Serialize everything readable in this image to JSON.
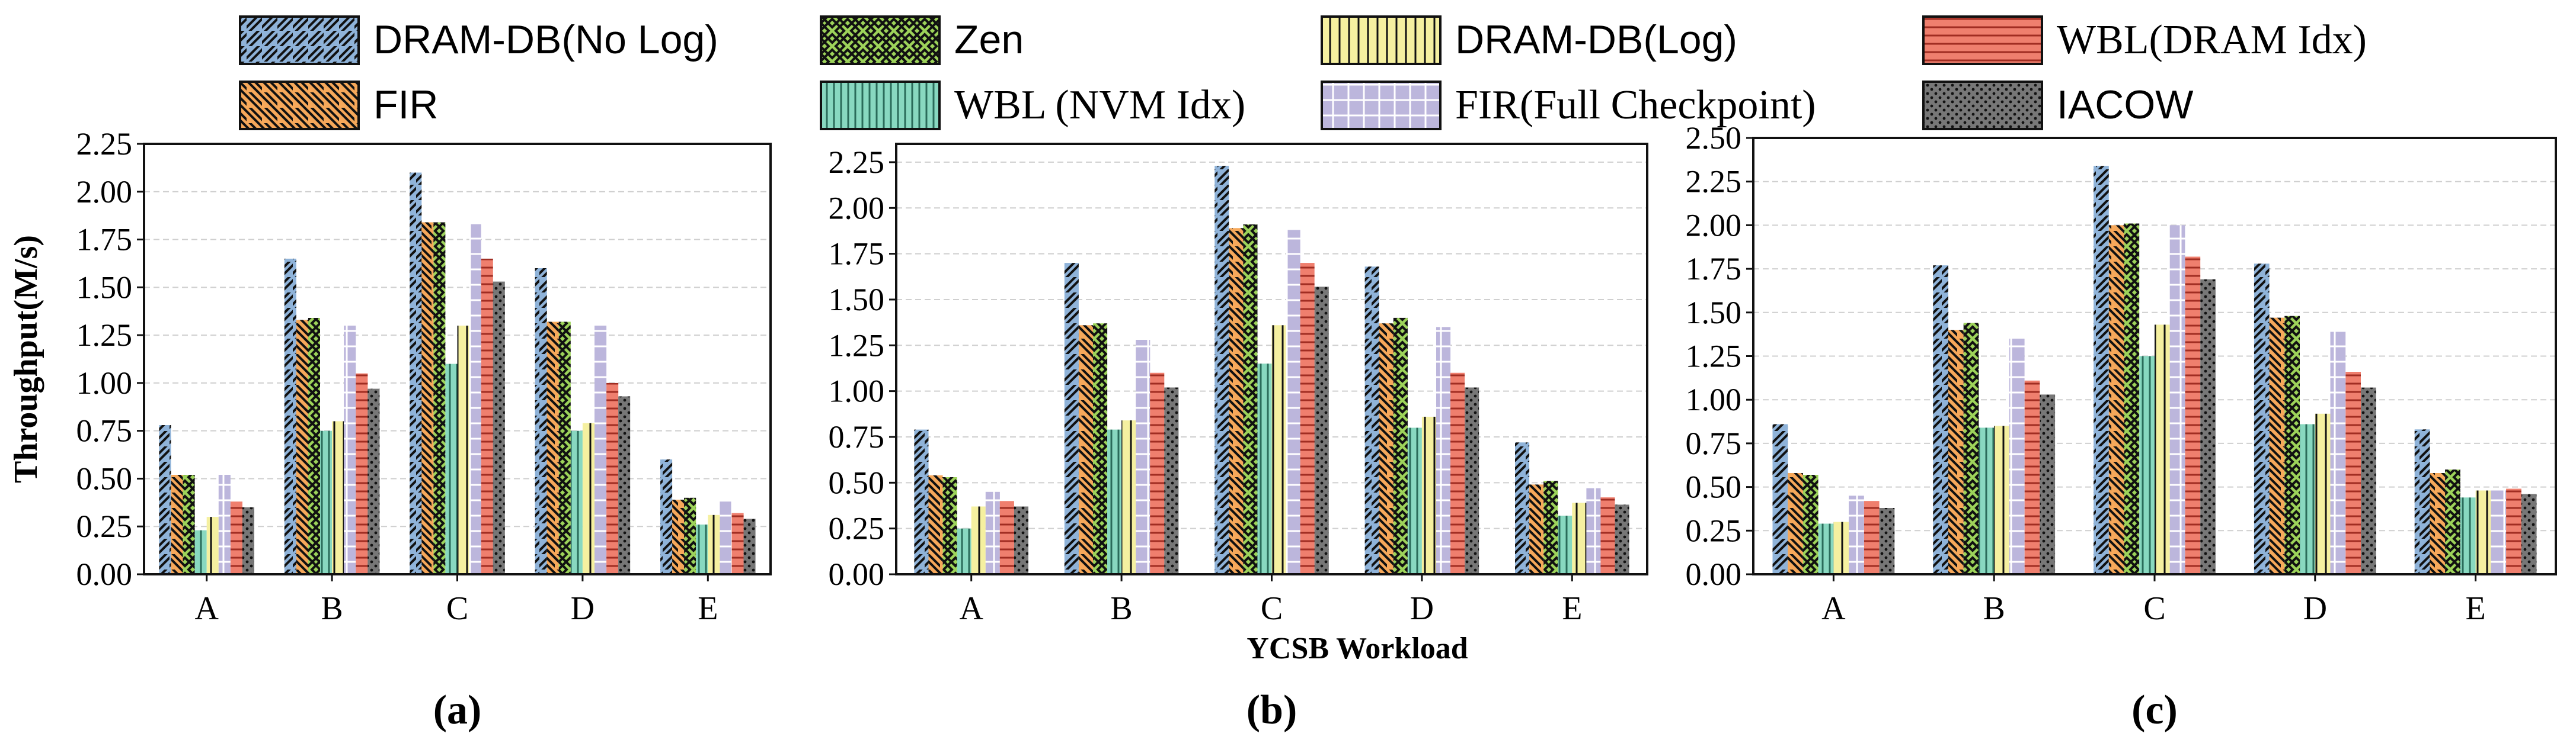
{
  "legend": [
    {
      "name": "DRAM-DB(No Log)",
      "color": "#8fb3d9",
      "pattern": "diag-right"
    },
    {
      "name": "Zen",
      "color": "#9dd35a",
      "pattern": "crosshatch"
    },
    {
      "name": "DRAM-DB(Log)",
      "color": "#f5f0a0",
      "pattern": "vertical"
    },
    {
      "name": "WBL(DRAM Idx)",
      "color": "#ef7f6e",
      "pattern": "horizontal"
    },
    {
      "name": "FIR",
      "color": "#f6a85a",
      "pattern": "diag-left"
    },
    {
      "name": "WBL (NVM Idx)",
      "color": "#88d8c0",
      "pattern": "vertical-dense"
    },
    {
      "name": "FIR(Full Checkpoint)",
      "color": "#bcb6dc",
      "pattern": "grid"
    },
    {
      "name": "IACOW",
      "color": "#777777",
      "pattern": "dots"
    }
  ],
  "shared_xlabel": "YCSB Workload",
  "chart_data": [
    {
      "type": "bar",
      "panel_label": "(a)",
      "title": "",
      "xlabel": "",
      "ylabel": "Throughput(M/s)",
      "ylim": [
        0,
        2.25
      ],
      "yticks": [
        "0.00",
        "0.25",
        "0.50",
        "0.75",
        "1.00",
        "1.25",
        "1.50",
        "1.75",
        "2.00",
        "2.25"
      ],
      "grid": true,
      "categories": [
        "A",
        "B",
        "C",
        "D",
        "E"
      ],
      "series": [
        {
          "name": "DRAM-DB(No Log)",
          "values": [
            0.78,
            1.65,
            2.1,
            1.6,
            0.6
          ]
        },
        {
          "name": "FIR",
          "values": [
            0.52,
            1.33,
            1.84,
            1.32,
            0.39
          ]
        },
        {
          "name": "Zen",
          "values": [
            0.52,
            1.34,
            1.84,
            1.32,
            0.4
          ]
        },
        {
          "name": "WBL (NVM Idx)",
          "values": [
            0.23,
            0.75,
            1.1,
            0.75,
            0.26
          ]
        },
        {
          "name": "DRAM-DB(Log)",
          "values": [
            0.3,
            0.8,
            1.3,
            0.79,
            0.31
          ]
        },
        {
          "name": "FIR(Full Checkpoint)",
          "values": [
            0.52,
            1.3,
            1.83,
            1.3,
            0.38
          ]
        },
        {
          "name": "WBL(DRAM Idx)",
          "values": [
            0.38,
            1.05,
            1.65,
            1.0,
            0.32
          ]
        },
        {
          "name": "IACOW",
          "values": [
            0.35,
            0.97,
            1.53,
            0.93,
            0.29
          ]
        }
      ]
    },
    {
      "type": "bar",
      "panel_label": "(b)",
      "title": "",
      "xlabel": "YCSB Workload",
      "ylabel": "",
      "ylim": [
        0,
        2.35
      ],
      "yticks": [
        "0.00",
        "0.25",
        "0.50",
        "0.75",
        "1.00",
        "1.25",
        "1.50",
        "1.75",
        "2.00",
        "2.25"
      ],
      "grid": true,
      "categories": [
        "A",
        "B",
        "C",
        "D",
        "E"
      ],
      "series": [
        {
          "name": "DRAM-DB(No Log)",
          "values": [
            0.79,
            1.7,
            2.23,
            1.68,
            0.72
          ]
        },
        {
          "name": "FIR",
          "values": [
            0.54,
            1.36,
            1.89,
            1.37,
            0.49
          ]
        },
        {
          "name": "Zen",
          "values": [
            0.53,
            1.37,
            1.91,
            1.4,
            0.51
          ]
        },
        {
          "name": "WBL (NVM Idx)",
          "values": [
            0.25,
            0.79,
            1.15,
            0.8,
            0.32
          ]
        },
        {
          "name": "DRAM-DB(Log)",
          "values": [
            0.37,
            0.84,
            1.36,
            0.86,
            0.39
          ]
        },
        {
          "name": "FIR(Full Checkpoint)",
          "values": [
            0.45,
            1.28,
            1.88,
            1.35,
            0.47
          ]
        },
        {
          "name": "WBL(DRAM Idx)",
          "values": [
            0.4,
            1.1,
            1.7,
            1.1,
            0.42
          ]
        },
        {
          "name": "IACOW",
          "values": [
            0.37,
            1.02,
            1.57,
            1.02,
            0.38
          ]
        }
      ]
    },
    {
      "type": "bar",
      "panel_label": "(c)",
      "title": "",
      "xlabel": "",
      "ylabel": "",
      "ylim": [
        0,
        2.5
      ],
      "yticks": [
        "0.00",
        "0.25",
        "0.50",
        "0.75",
        "1.00",
        "1.25",
        "1.50",
        "1.75",
        "2.00",
        "2.25",
        "2.50"
      ],
      "grid": true,
      "categories": [
        "A",
        "B",
        "C",
        "D",
        "E"
      ],
      "series": [
        {
          "name": "DRAM-DB(No Log)",
          "values": [
            0.86,
            1.77,
            2.34,
            1.78,
            0.83
          ]
        },
        {
          "name": "FIR",
          "values": [
            0.58,
            1.4,
            2.0,
            1.47,
            0.58
          ]
        },
        {
          "name": "Zen",
          "values": [
            0.57,
            1.44,
            2.01,
            1.48,
            0.6
          ]
        },
        {
          "name": "WBL (NVM Idx)",
          "values": [
            0.29,
            0.84,
            1.25,
            0.86,
            0.44
          ]
        },
        {
          "name": "DRAM-DB(Log)",
          "values": [
            0.3,
            0.85,
            1.43,
            0.92,
            0.48
          ]
        },
        {
          "name": "FIR(Full Checkpoint)",
          "values": [
            0.45,
            1.35,
            2.0,
            1.39,
            0.48
          ]
        },
        {
          "name": "WBL(DRAM Idx)",
          "values": [
            0.42,
            1.11,
            1.82,
            1.16,
            0.49
          ]
        },
        {
          "name": "IACOW",
          "values": [
            0.38,
            1.03,
            1.69,
            1.07,
            0.46
          ]
        }
      ]
    }
  ]
}
